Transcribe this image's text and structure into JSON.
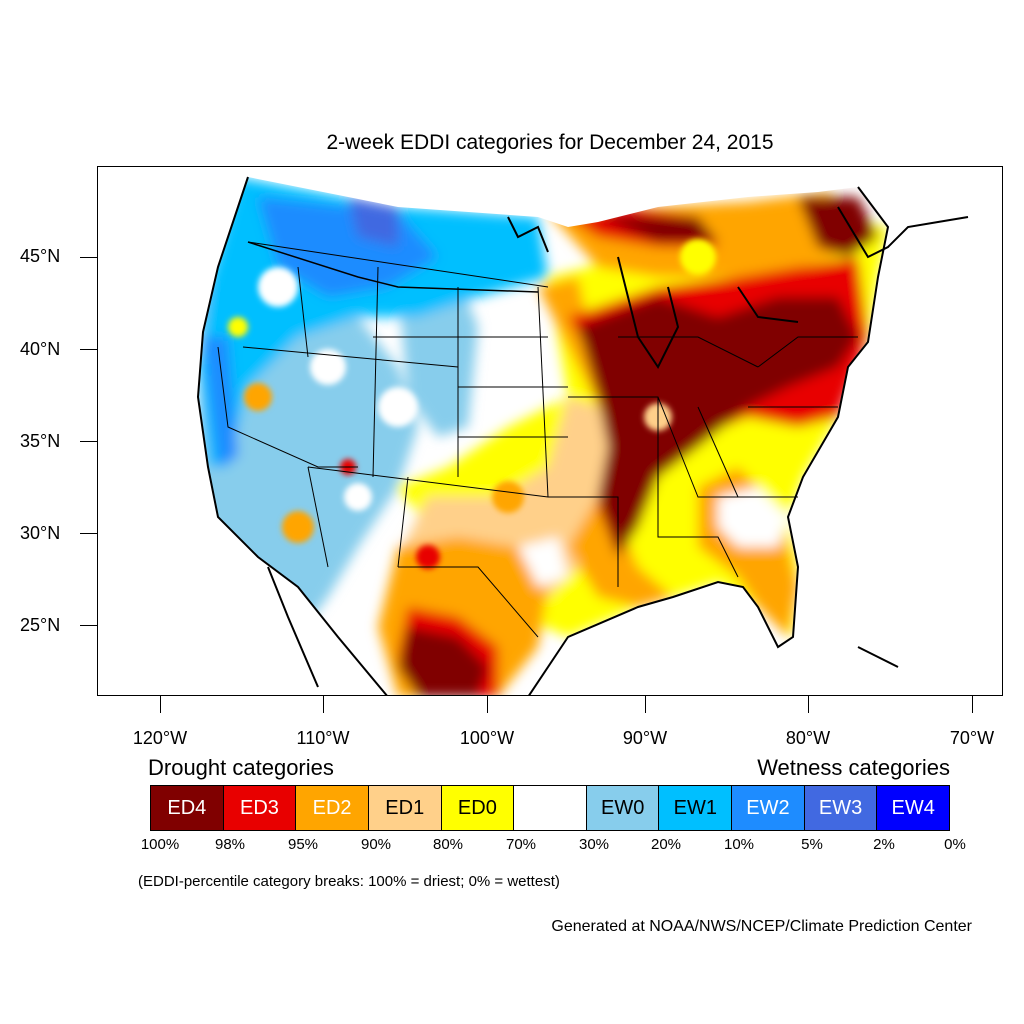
{
  "title": "2-week EDDI categories for December 24, 2015",
  "latitude_labels": [
    "45°N",
    "40°N",
    "35°N",
    "30°N",
    "25°N"
  ],
  "longitude_labels": [
    "120°W",
    "110°W",
    "100°W",
    "90°W",
    "80°W",
    "70°W"
  ],
  "drought_heading": "Drought categories",
  "wetness_heading": "Wetness categories",
  "legend": [
    {
      "label": "ED4",
      "color": "#800000",
      "text_color": "#ffffff"
    },
    {
      "label": "ED3",
      "color": "#e80000",
      "text_color": "#ffffff"
    },
    {
      "label": "ED2",
      "color": "#ffa500",
      "text_color": "#ffffff"
    },
    {
      "label": "ED1",
      "color": "#ffd08a",
      "text_color": "#000000"
    },
    {
      "label": "ED0",
      "color": "#ffff00",
      "text_color": "#000000"
    },
    {
      "label": "",
      "color": "#ffffff",
      "text_color": "#000000"
    },
    {
      "label": "EW0",
      "color": "#87cdec",
      "text_color": "#000000"
    },
    {
      "label": "EW1",
      "color": "#00bfff",
      "text_color": "#000000"
    },
    {
      "label": "EW2",
      "color": "#1e8cff",
      "text_color": "#ffffff"
    },
    {
      "label": "EW3",
      "color": "#4169e1",
      "text_color": "#ffffff"
    },
    {
      "label": "EW4",
      "color": "#0000ff",
      "text_color": "#ffffff"
    }
  ],
  "percentile_labels": [
    "100%",
    "98%",
    "95%",
    "90%",
    "80%",
    "70%",
    "30%",
    "20%",
    "10%",
    "5%",
    "2%",
    "0%"
  ],
  "breaks_note": "(EDDI-percentile category breaks: 100% = driest; 0% = wettest)",
  "credit": "Generated at NOAA/NWS/NCEP/Climate Prediction Center"
}
